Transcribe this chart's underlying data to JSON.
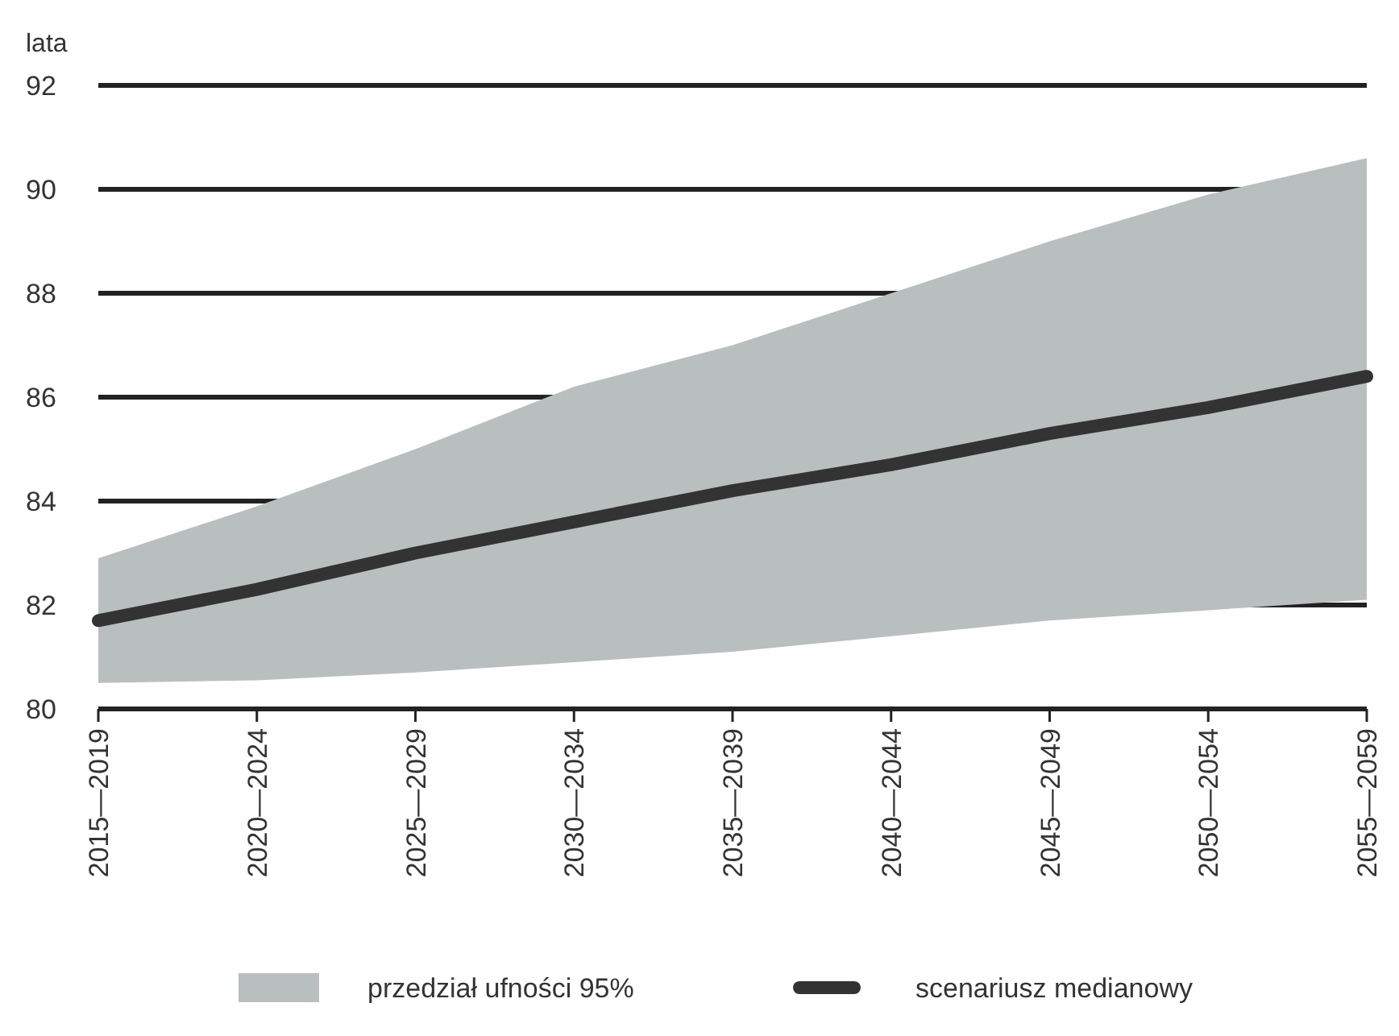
{
  "chart_data": {
    "type": "line",
    "ylabel": "lata",
    "categories": [
      "2015—2019",
      "2020—2024",
      "2025—2029",
      "2030—2034",
      "2035—2039",
      "2040—2044",
      "2045—2049",
      "2050—2054",
      "2055—2059"
    ],
    "series": [
      {
        "name": "scenariusz medianowy",
        "color": "#333333",
        "values": [
          81.7,
          82.3,
          83.0,
          83.6,
          84.2,
          84.7,
          85.3,
          85.8,
          86.4
        ],
        "lower": [
          80.5,
          80.55,
          80.7,
          80.9,
          81.1,
          81.4,
          81.7,
          81.9,
          82.1
        ],
        "upper": [
          82.9,
          83.9,
          85.0,
          86.2,
          87.0,
          88.0,
          89.0,
          89.9,
          90.6
        ]
      }
    ],
    "annotations": [
      "przedział ufności 95%"
    ],
    "ylim": [
      80,
      92
    ],
    "yticks": [
      80,
      82,
      84,
      86,
      88,
      90,
      92
    ],
    "grid": "y",
    "legend": "bottom",
    "line_style": "solid",
    "marker": "none"
  }
}
